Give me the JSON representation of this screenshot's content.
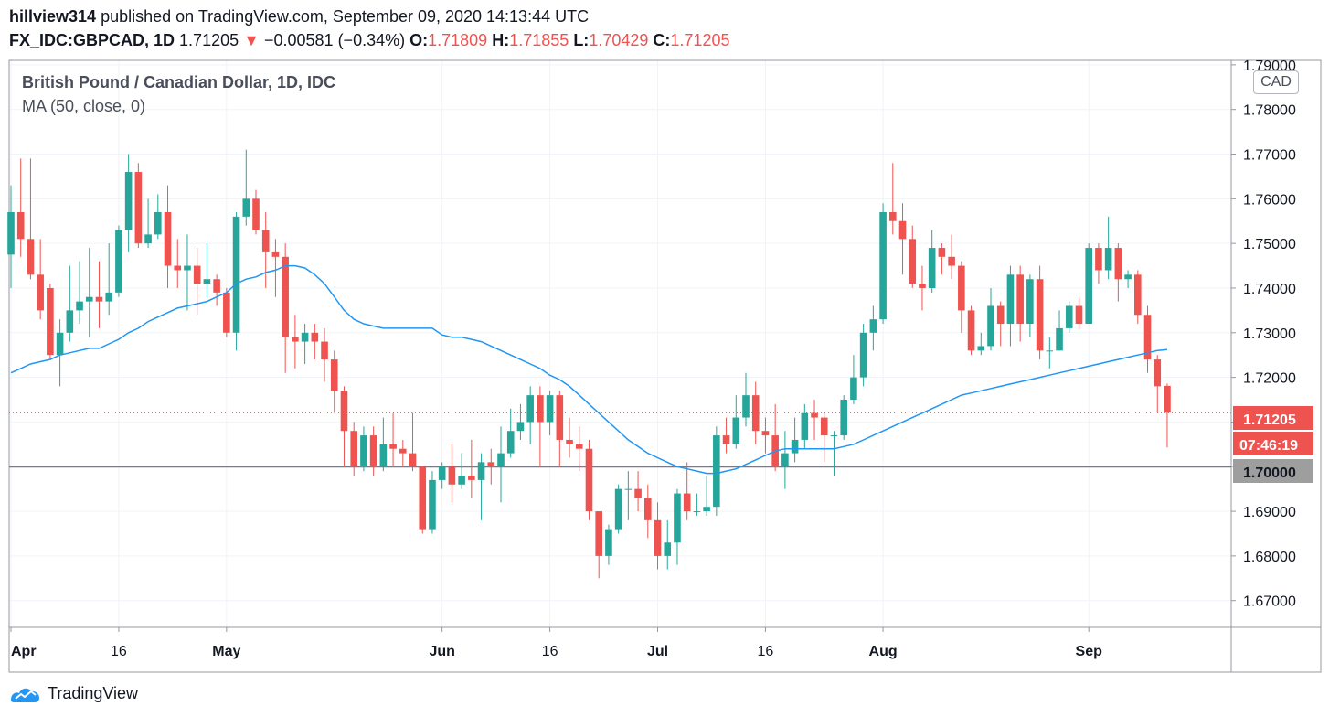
{
  "header": {
    "author": "hillview314",
    "published_text": "published on TradingView.com, September 09, 2020 14:13:44 UTC",
    "symbol": "FX_IDC:GBPCAD, 1D",
    "last": "1.71205",
    "arrow": "▼",
    "change": "−0.00581 (−0.34%)",
    "o_label": "O:",
    "o_value": "1.71809",
    "h_label": "H:",
    "h_value": "1.71855",
    "l_label": "L:",
    "l_value": "1.70429",
    "c_label": "C:",
    "c_value": "1.71205"
  },
  "legend": {
    "title": "British Pound / Canadian Dollar, 1D, IDC",
    "indicator": "MA (50, close, 0)"
  },
  "currency_badge": "CAD",
  "price_label": "1.71205",
  "countdown_label": "07:46:19",
  "level_label": "1.70000",
  "footer": {
    "brand": "TradingView"
  },
  "colors": {
    "up": "#26a69a",
    "down": "#ef5350",
    "ma": "#2196f3",
    "level": "#787b86",
    "level_box": "#9e9e9e"
  },
  "chart_data": {
    "type": "candlestick",
    "ylim": [
      1.664,
      1.791
    ],
    "yticks": [
      "1.79000",
      "1.78000",
      "1.77000",
      "1.76000",
      "1.75000",
      "1.74000",
      "1.73000",
      "1.72000",
      "1.71000",
      "1.70000",
      "1.69000",
      "1.68000",
      "1.67000"
    ],
    "xticks": [
      {
        "label": "Apr",
        "index": 0
      },
      {
        "label": "16",
        "index": 11
      },
      {
        "label": "May",
        "index": 22
      },
      {
        "label": "Jun",
        "index": 44
      },
      {
        "label": "16",
        "index": 55
      },
      {
        "label": "Jul",
        "index": 66
      },
      {
        "label": "16",
        "index": 77
      },
      {
        "label": "Aug",
        "index": 89
      },
      {
        "label": "Sep",
        "index": 110
      }
    ],
    "horizontal_level": 1.7,
    "last_price": 1.71205,
    "candles": [
      [
        1.7475,
        1.757,
        1.74,
        1.763
      ],
      [
        1.757,
        1.751,
        1.747,
        1.769
      ],
      [
        1.751,
        1.743,
        1.742,
        1.769
      ],
      [
        1.743,
        1.735,
        1.733,
        1.751
      ],
      [
        1.74,
        1.725,
        1.724,
        1.741
      ],
      [
        1.725,
        1.73,
        1.718,
        1.733
      ],
      [
        1.73,
        1.735,
        1.728,
        1.745
      ],
      [
        1.735,
        1.737,
        1.732,
        1.746
      ],
      [
        1.737,
        1.738,
        1.729,
        1.749
      ],
      [
        1.738,
        1.737,
        1.731,
        1.746
      ],
      [
        1.737,
        1.739,
        1.734,
        1.75
      ],
      [
        1.739,
        1.753,
        1.738,
        1.754
      ],
      [
        1.753,
        1.766,
        1.748,
        1.77
      ],
      [
        1.766,
        1.75,
        1.749,
        1.768
      ],
      [
        1.75,
        1.752,
        1.749,
        1.76
      ],
      [
        1.752,
        1.757,
        1.751,
        1.761
      ],
      [
        1.757,
        1.745,
        1.74,
        1.763
      ],
      [
        1.745,
        1.744,
        1.74,
        1.751
      ],
      [
        1.744,
        1.745,
        1.735,
        1.752
      ],
      [
        1.745,
        1.741,
        1.734,
        1.749
      ],
      [
        1.741,
        1.742,
        1.738,
        1.75
      ],
      [
        1.742,
        1.739,
        1.736,
        1.743
      ],
      [
        1.739,
        1.73,
        1.729,
        1.74
      ],
      [
        1.73,
        1.756,
        1.726,
        1.757
      ],
      [
        1.756,
        1.76,
        1.754,
        1.771
      ],
      [
        1.76,
        1.753,
        1.752,
        1.762
      ],
      [
        1.753,
        1.748,
        1.74,
        1.757
      ],
      [
        1.748,
        1.747,
        1.738,
        1.751
      ],
      [
        1.747,
        1.729,
        1.721,
        1.75
      ],
      [
        1.729,
        1.728,
        1.722,
        1.734
      ],
      [
        1.728,
        1.73,
        1.723,
        1.732
      ],
      [
        1.73,
        1.728,
        1.724,
        1.732
      ],
      [
        1.728,
        1.724,
        1.719,
        1.731
      ],
      [
        1.724,
        1.717,
        1.712,
        1.726
      ],
      [
        1.717,
        1.708,
        1.7,
        1.718
      ],
      [
        1.708,
        1.7,
        1.698,
        1.71
      ],
      [
        1.7,
        1.707,
        1.699,
        1.709
      ],
      [
        1.707,
        1.7,
        1.698,
        1.709
      ],
      [
        1.7,
        1.705,
        1.699,
        1.711
      ],
      [
        1.705,
        1.704,
        1.7,
        1.712
      ],
      [
        1.704,
        1.703,
        1.7,
        1.706
      ],
      [
        1.703,
        1.7,
        1.699,
        1.712
      ],
      [
        1.7,
        1.686,
        1.685,
        1.7
      ],
      [
        1.686,
        1.697,
        1.685,
        1.699
      ],
      [
        1.697,
        1.7,
        1.695,
        1.701
      ],
      [
        1.7,
        1.696,
        1.692,
        1.705
      ],
      [
        1.696,
        1.698,
        1.695,
        1.703
      ],
      [
        1.698,
        1.697,
        1.693,
        1.706
      ],
      [
        1.697,
        1.701,
        1.688,
        1.703
      ],
      [
        1.701,
        1.7,
        1.696,
        1.704
      ],
      [
        1.7,
        1.703,
        1.692,
        1.709
      ],
      [
        1.703,
        1.708,
        1.702,
        1.713
      ],
      [
        1.708,
        1.71,
        1.706,
        1.714
      ],
      [
        1.71,
        1.716,
        1.705,
        1.718
      ],
      [
        1.716,
        1.71,
        1.7,
        1.718
      ],
      [
        1.71,
        1.716,
        1.707,
        1.717
      ],
      [
        1.716,
        1.706,
        1.7,
        1.717
      ],
      [
        1.706,
        1.705,
        1.702,
        1.711
      ],
      [
        1.705,
        1.704,
        1.699,
        1.709
      ],
      [
        1.704,
        1.69,
        1.688,
        1.706
      ],
      [
        1.69,
        1.68,
        1.675,
        1.69
      ],
      [
        1.68,
        1.686,
        1.678,
        1.687
      ],
      [
        1.686,
        1.695,
        1.685,
        1.696
      ],
      [
        1.695,
        1.695,
        1.688,
        1.699
      ],
      [
        1.695,
        1.693,
        1.69,
        1.699
      ],
      [
        1.693,
        1.688,
        1.684,
        1.696
      ],
      [
        1.688,
        1.68,
        1.677,
        1.692
      ],
      [
        1.68,
        1.683,
        1.677,
        1.688
      ],
      [
        1.683,
        1.694,
        1.678,
        1.695
      ],
      [
        1.694,
        1.69,
        1.688,
        1.701
      ],
      [
        1.69,
        1.69,
        1.689,
        1.694
      ],
      [
        1.69,
        1.691,
        1.689,
        1.698
      ],
      [
        1.691,
        1.707,
        1.689,
        1.709
      ],
      [
        1.707,
        1.705,
        1.703,
        1.711
      ],
      [
        1.705,
        1.711,
        1.704,
        1.716
      ],
      [
        1.711,
        1.716,
        1.709,
        1.721
      ],
      [
        1.716,
        1.708,
        1.705,
        1.719
      ],
      [
        1.708,
        1.707,
        1.703,
        1.711
      ],
      [
        1.707,
        1.7,
        1.699,
        1.714
      ],
      [
        1.7,
        1.703,
        1.695,
        1.708
      ],
      [
        1.703,
        1.706,
        1.701,
        1.711
      ],
      [
        1.706,
        1.712,
        1.704,
        1.714
      ],
      [
        1.712,
        1.711,
        1.706,
        1.715
      ],
      [
        1.711,
        1.707,
        1.701,
        1.712
      ],
      [
        1.707,
        1.707,
        1.698,
        1.708
      ],
      [
        1.707,
        1.715,
        1.706,
        1.716
      ],
      [
        1.715,
        1.72,
        1.714,
        1.725
      ],
      [
        1.72,
        1.73,
        1.718,
        1.732
      ],
      [
        1.73,
        1.733,
        1.726,
        1.736
      ],
      [
        1.733,
        1.757,
        1.732,
        1.759
      ],
      [
        1.757,
        1.755,
        1.752,
        1.768
      ],
      [
        1.755,
        1.751,
        1.743,
        1.759
      ],
      [
        1.751,
        1.741,
        1.74,
        1.754
      ],
      [
        1.741,
        1.74,
        1.735,
        1.745
      ],
      [
        1.74,
        1.749,
        1.739,
        1.753
      ],
      [
        1.749,
        1.747,
        1.743,
        1.75
      ],
      [
        1.747,
        1.745,
        1.742,
        1.752
      ],
      [
        1.745,
        1.735,
        1.73,
        1.746
      ],
      [
        1.735,
        1.726,
        1.725,
        1.736
      ],
      [
        1.726,
        1.727,
        1.725,
        1.73
      ],
      [
        1.727,
        1.736,
        1.726,
        1.74
      ],
      [
        1.736,
        1.732,
        1.727,
        1.737
      ],
      [
        1.732,
        1.743,
        1.727,
        1.745
      ],
      [
        1.743,
        1.732,
        1.728,
        1.745
      ],
      [
        1.732,
        1.742,
        1.729,
        1.743
      ],
      [
        1.742,
        1.726,
        1.724,
        1.745
      ],
      [
        1.726,
        1.726,
        1.722,
        1.729
      ],
      [
        1.726,
        1.731,
        1.726,
        1.735
      ],
      [
        1.731,
        1.736,
        1.73,
        1.737
      ],
      [
        1.736,
        1.732,
        1.731,
        1.738
      ],
      [
        1.732,
        1.749,
        1.732,
        1.75
      ],
      [
        1.749,
        1.744,
        1.741,
        1.75
      ],
      [
        1.744,
        1.749,
        1.742,
        1.756
      ],
      [
        1.749,
        1.742,
        1.737,
        1.75
      ],
      [
        1.742,
        1.743,
        1.74,
        1.744
      ],
      [
        1.743,
        1.734,
        1.732,
        1.744
      ],
      [
        1.734,
        1.724,
        1.721,
        1.736
      ],
      [
        1.724,
        1.718,
        1.712,
        1.725
      ],
      [
        1.7181,
        1.7121,
        1.7043,
        1.7186
      ]
    ],
    "ma_series": {
      "name": "MA (50, close, 0)",
      "start_index": 0,
      "values": [
        1.721,
        1.722,
        1.723,
        1.7235,
        1.724,
        1.725,
        1.7255,
        1.726,
        1.7265,
        1.7265,
        1.7275,
        1.7285,
        1.73,
        1.731,
        1.7325,
        1.7335,
        1.7345,
        1.7355,
        1.736,
        1.7365,
        1.737,
        1.738,
        1.739,
        1.741,
        1.742,
        1.7425,
        1.7435,
        1.744,
        1.745,
        1.745,
        1.7445,
        1.743,
        1.741,
        1.738,
        1.735,
        1.733,
        1.732,
        1.7315,
        1.731,
        1.731,
        1.731,
        1.731,
        1.731,
        1.731,
        1.7295,
        1.729,
        1.729,
        1.7285,
        1.728,
        1.727,
        1.726,
        1.725,
        1.724,
        1.723,
        1.722,
        1.7205,
        1.7195,
        1.718,
        1.716,
        1.714,
        1.712,
        1.71,
        1.708,
        1.706,
        1.7045,
        1.703,
        1.702,
        1.701,
        1.7,
        1.6995,
        1.699,
        1.6985,
        1.6985,
        1.699,
        1.6995,
        1.7005,
        1.7015,
        1.7025,
        1.7035,
        1.704,
        1.704,
        1.704,
        1.704,
        1.704,
        1.704,
        1.7045,
        1.705,
        1.706,
        1.707,
        1.708,
        1.709,
        1.71,
        1.711,
        1.712,
        1.713,
        1.714,
        1.715,
        1.716,
        1.7165,
        1.717,
        1.7175,
        1.718,
        1.7185,
        1.719,
        1.7195,
        1.72,
        1.7205,
        1.721,
        1.7215,
        1.722,
        1.7225,
        1.723,
        1.7235,
        1.724,
        1.7245,
        1.725,
        1.7255,
        1.726,
        1.7262
      ]
    }
  }
}
